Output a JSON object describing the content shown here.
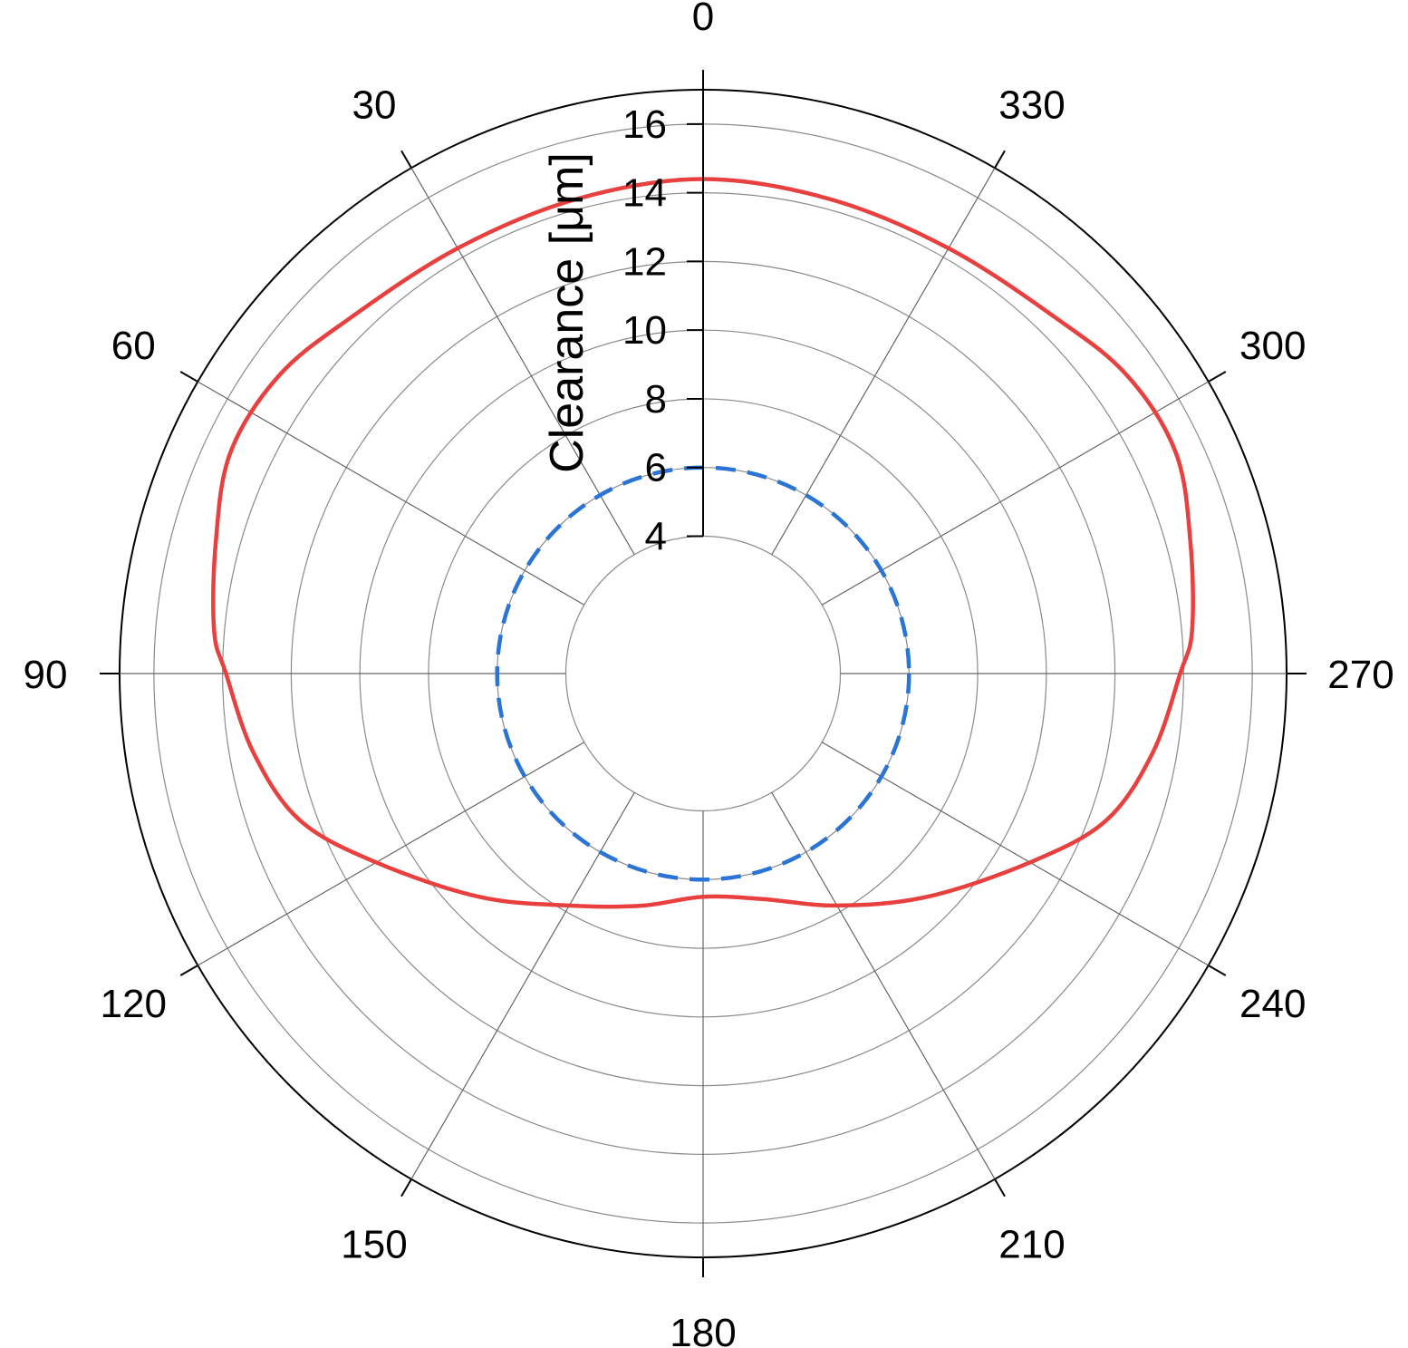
{
  "chart_data": {
    "type": "line",
    "polar": true,
    "angle_direction": "counterclockwise",
    "angle_zero": "top",
    "angle_ticks": [
      0,
      30,
      60,
      90,
      120,
      150,
      180,
      210,
      240,
      270,
      300,
      330
    ],
    "rlabel": "Clearance [μm]",
    "rlim": [
      0,
      17
    ],
    "r_ticks": [
      4,
      6,
      8,
      10,
      12,
      14,
      16
    ],
    "r_grid": [
      4,
      6,
      8,
      10,
      12,
      14,
      16
    ],
    "grid": true,
    "series": [
      {
        "style": "solid",
        "color": "#e8403f",
        "theta": [
          0,
          15,
          30,
          45,
          55,
          65,
          75,
          85,
          90,
          100,
          110,
          120,
          135,
          150,
          165,
          180,
          195,
          210,
          225,
          240,
          250,
          260,
          270,
          275,
          285,
          295,
          305,
          315,
          330,
          345,
          360
        ],
        "r": [
          14.4,
          14.3,
          14.3,
          14.6,
          15.1,
          15.2,
          14.7,
          14.3,
          13.9,
          13.3,
          12.5,
          11.0,
          9.2,
          7.8,
          7.0,
          6.5,
          6.8,
          7.8,
          9.2,
          11.0,
          12.5,
          13.3,
          13.9,
          14.3,
          14.7,
          15.2,
          15.1,
          14.6,
          14.3,
          14.3,
          14.4
        ]
      },
      {
        "style": "dashed",
        "color": "#2a74d6",
        "theta": [
          0,
          360
        ],
        "r": [
          6,
          6
        ]
      }
    ]
  }
}
